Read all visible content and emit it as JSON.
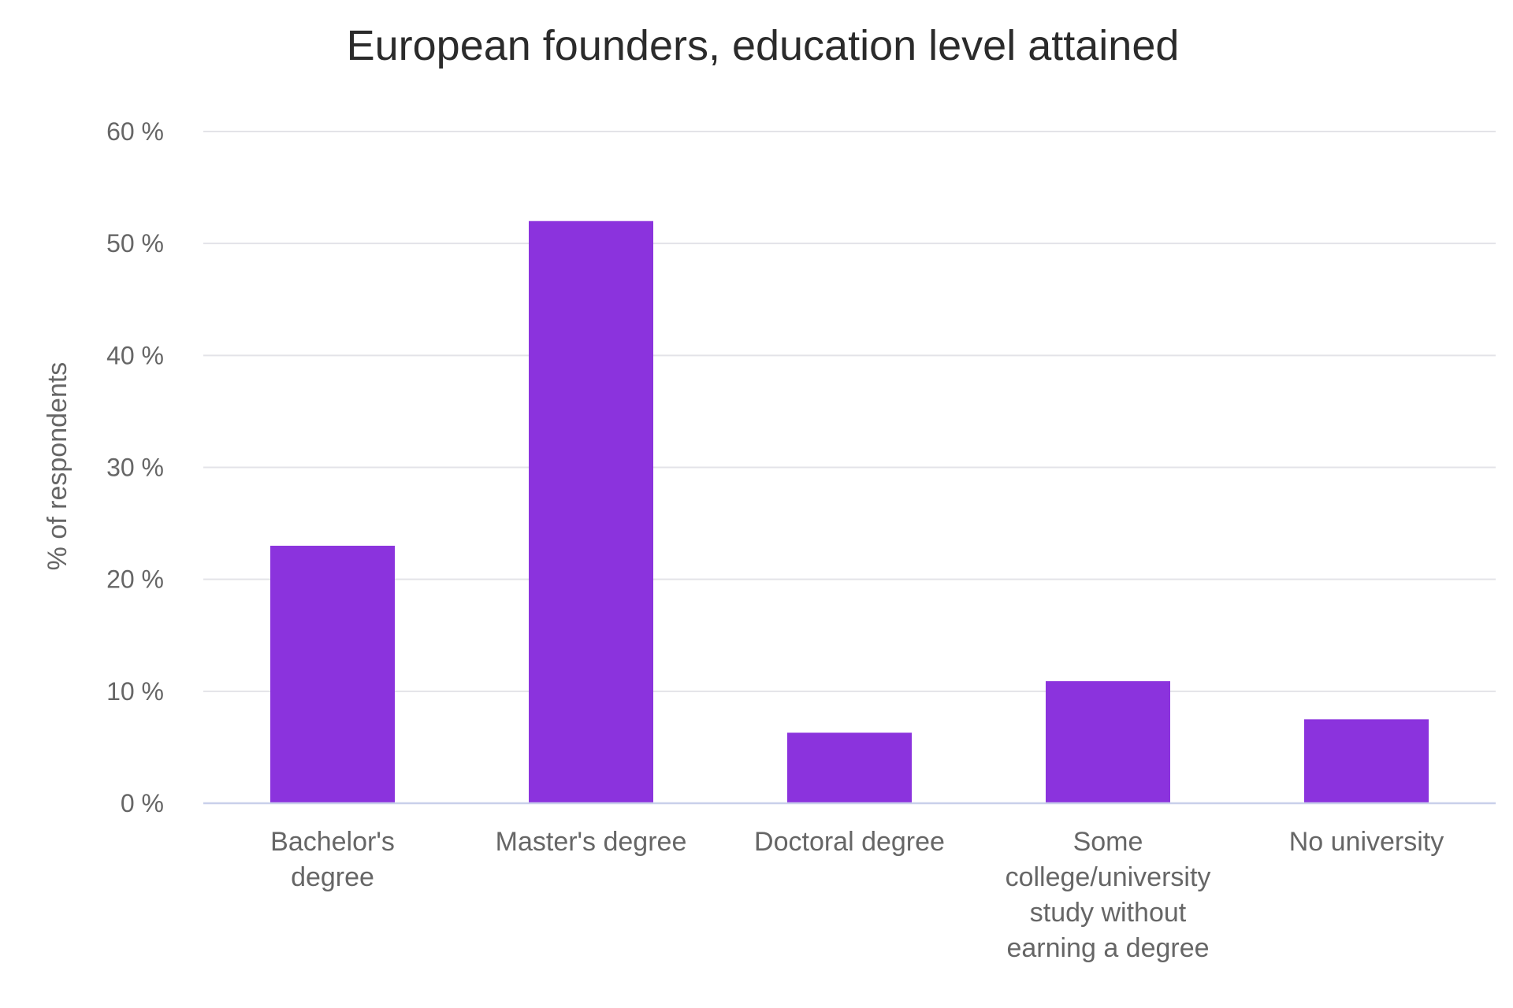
{
  "chart_data": {
    "type": "bar",
    "title": "European founders, education level attained",
    "ylabel": "% of respondents",
    "xlabel": "",
    "categories": [
      "Bachelor's degree",
      "Master's degree",
      "Doctoral degree",
      "Some college/university study without earning a degree",
      "No university"
    ],
    "category_lines": [
      [
        "Bachelor's",
        "degree"
      ],
      [
        "Master's degree"
      ],
      [
        "Doctoral degree"
      ],
      [
        "Some",
        "college/university",
        "study without",
        "earning a degree"
      ],
      [
        "No university"
      ]
    ],
    "values": [
      23,
      52,
      6.3,
      10.9,
      7.5
    ],
    "ylim": [
      0,
      60
    ],
    "yticks": [
      0,
      10,
      20,
      30,
      40,
      50,
      60
    ],
    "ytick_labels": [
      "0 %",
      "10 %",
      "20 %",
      "30 %",
      "40 %",
      "50 %",
      "60 %"
    ],
    "grid": true,
    "legend": "none",
    "colors": {
      "bar": "#8b33dd",
      "grid": "#e3e3e8",
      "baseline": "#c9d0ea",
      "text": "#666666",
      "title": "#2b2b2b"
    }
  }
}
